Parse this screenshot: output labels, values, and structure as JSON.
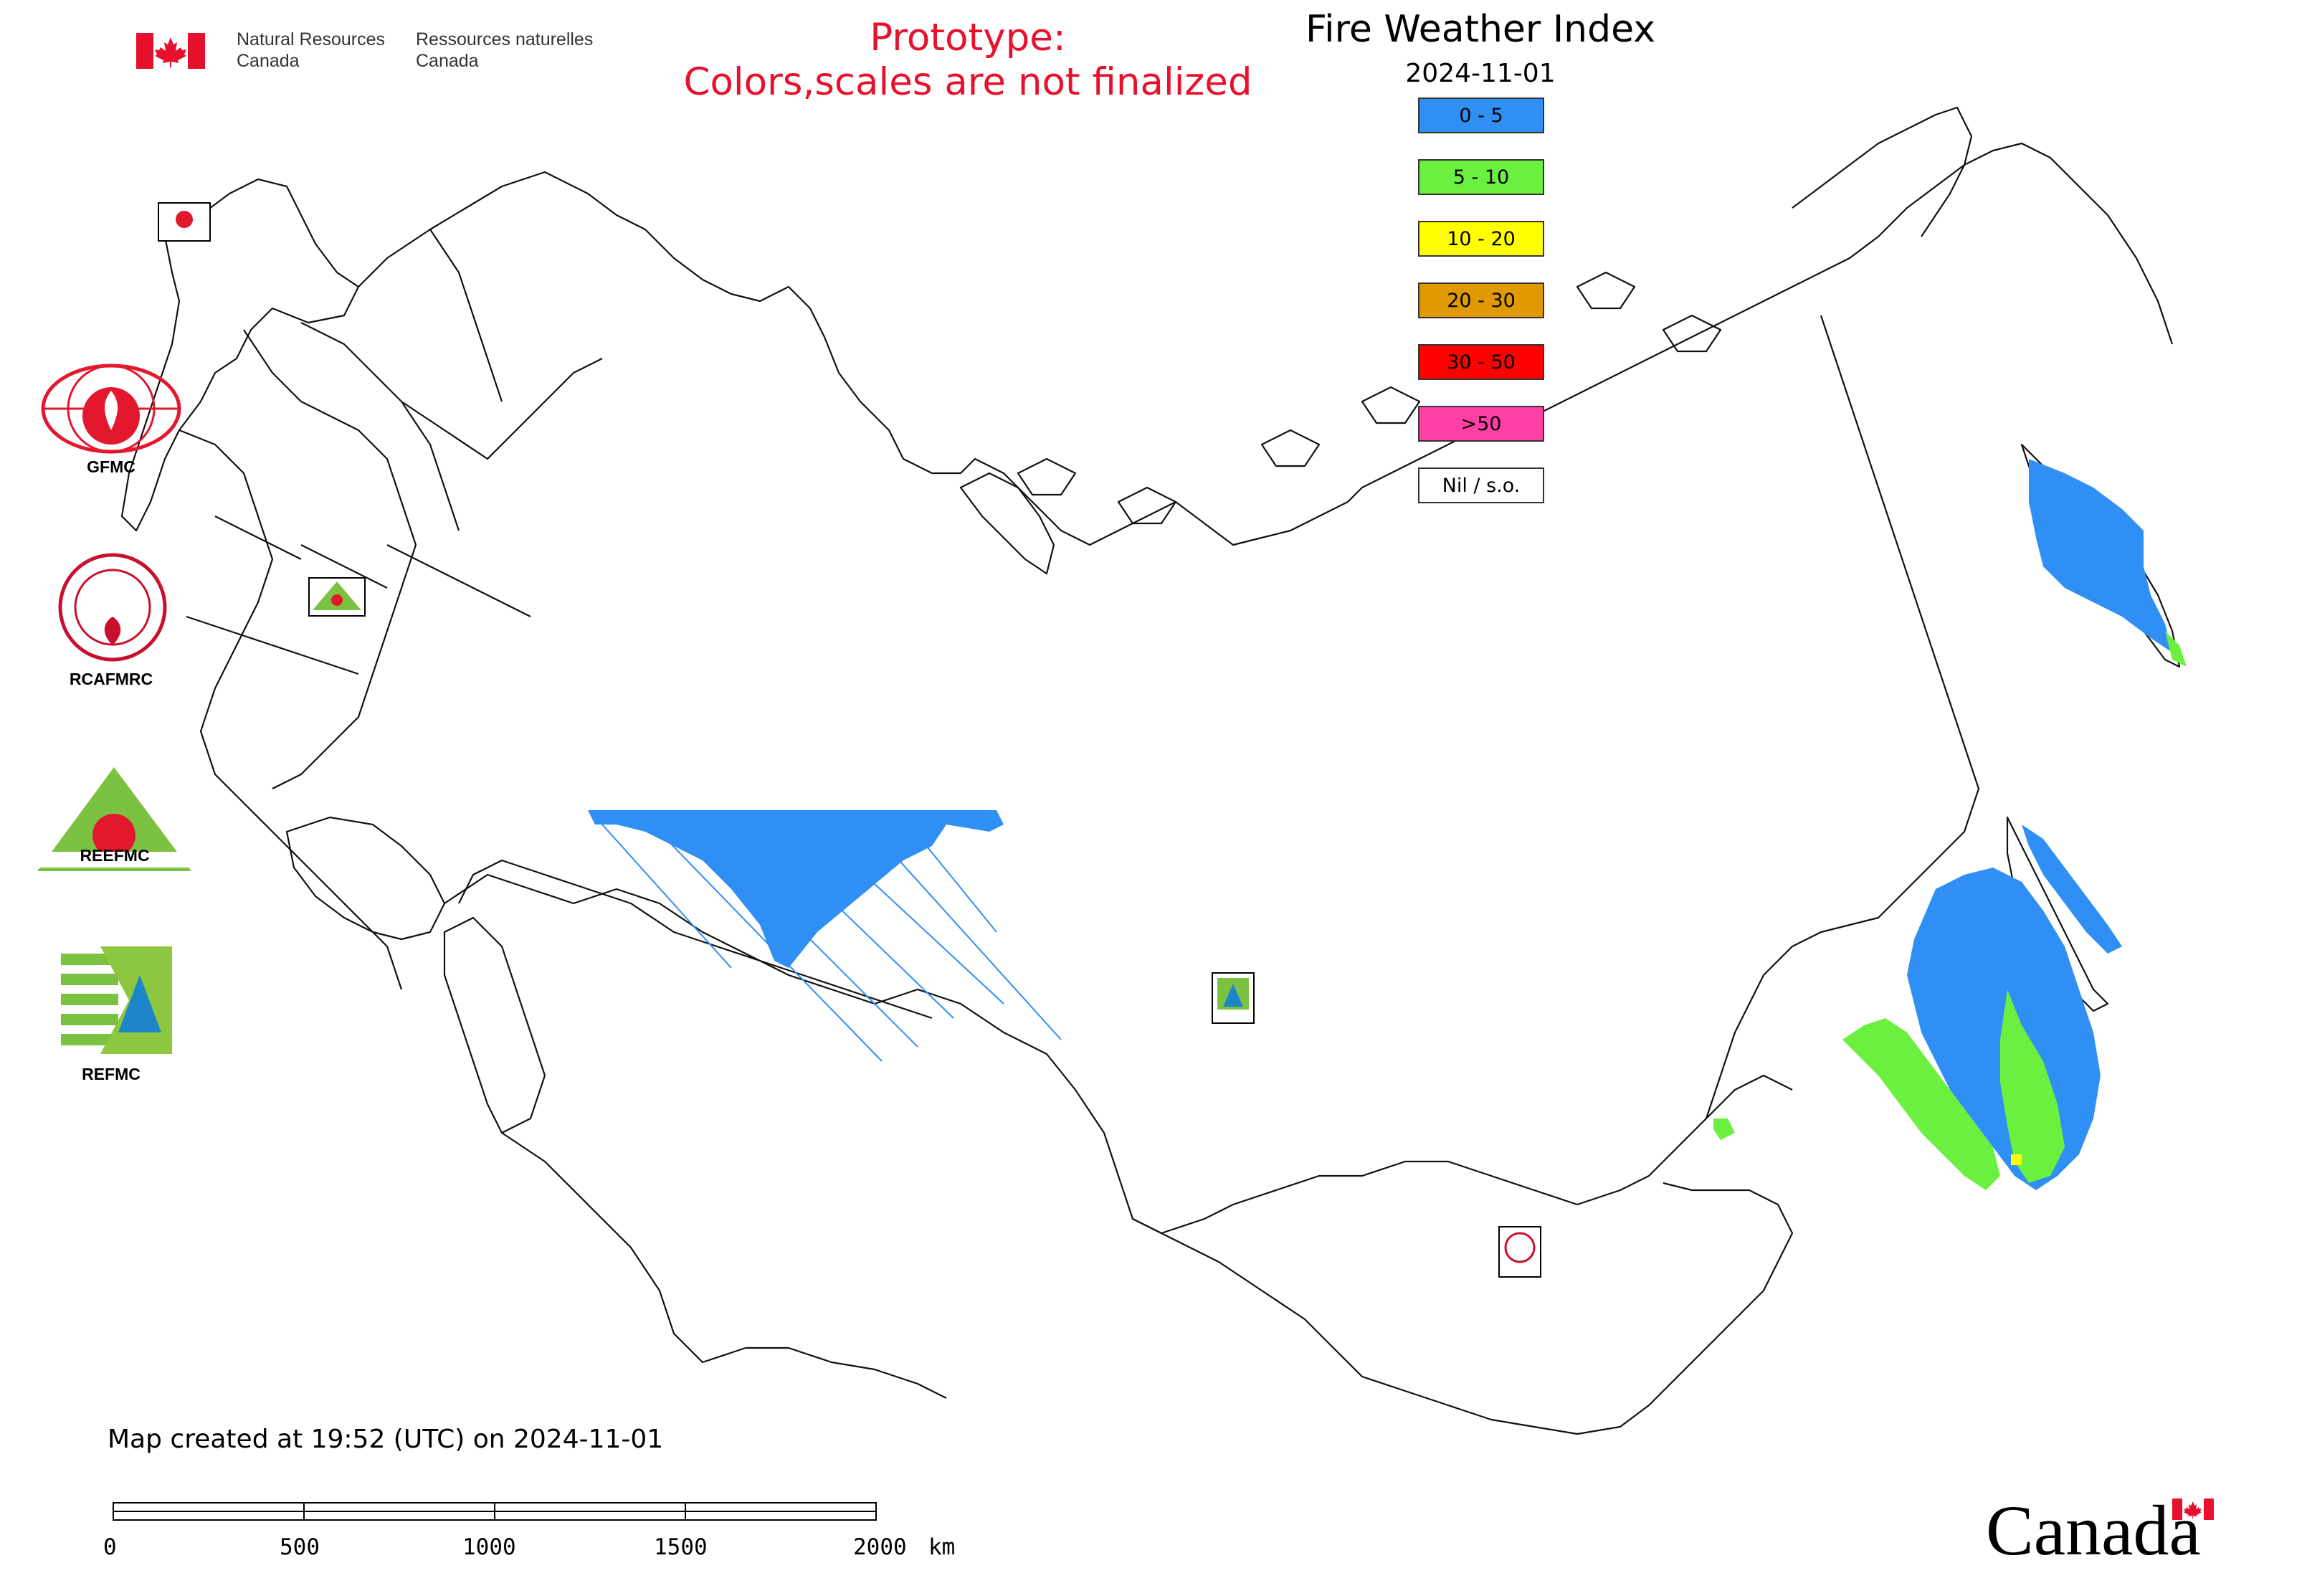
{
  "header": {
    "department_en_line1": "Natural Resources",
    "department_en_line2": "Canada",
    "department_fr_line1": "Ressources naturelles",
    "department_fr_line2": "Canada",
    "prototype_line1": "Prototype:",
    "prototype_line2": "Colors,scales are not finalized"
  },
  "map": {
    "title": "Fire Weather Index",
    "date": "2024-11-01",
    "created_note": "Map created at 19:52 (UTC) on 2024-11-01"
  },
  "legend": {
    "items": [
      {
        "label": "0 - 5",
        "color": "#2f8ff5"
      },
      {
        "label": "5 - 10",
        "color": "#6cf040"
      },
      {
        "label": "10 - 20",
        "color": "#ffff00"
      },
      {
        "label": "20 - 30",
        "color": "#e09a00"
      },
      {
        "label": "30 - 50",
        "color": "#ff0000"
      },
      {
        "label": ">50",
        "color": "#ff3fa4"
      },
      {
        "label": "Nil / s.o.",
        "color": "#ffffff"
      }
    ]
  },
  "partners": [
    {
      "label": "GFMC"
    },
    {
      "label": "RCAFMRC"
    },
    {
      "label": "REEFMC"
    },
    {
      "label": "REFMC"
    }
  ],
  "scale": {
    "ticks": [
      "0",
      "500",
      "1000",
      "1500",
      "2000"
    ],
    "unit": "km"
  },
  "footer": {
    "wordmark": "Canada"
  },
  "colors": {
    "fwi_low": "#2f8ff5",
    "fwi_moderate": "#6cf040",
    "fwi_high": "#ffff00",
    "prototype_red": "#e8112d",
    "flag_red": "#e8112d"
  }
}
